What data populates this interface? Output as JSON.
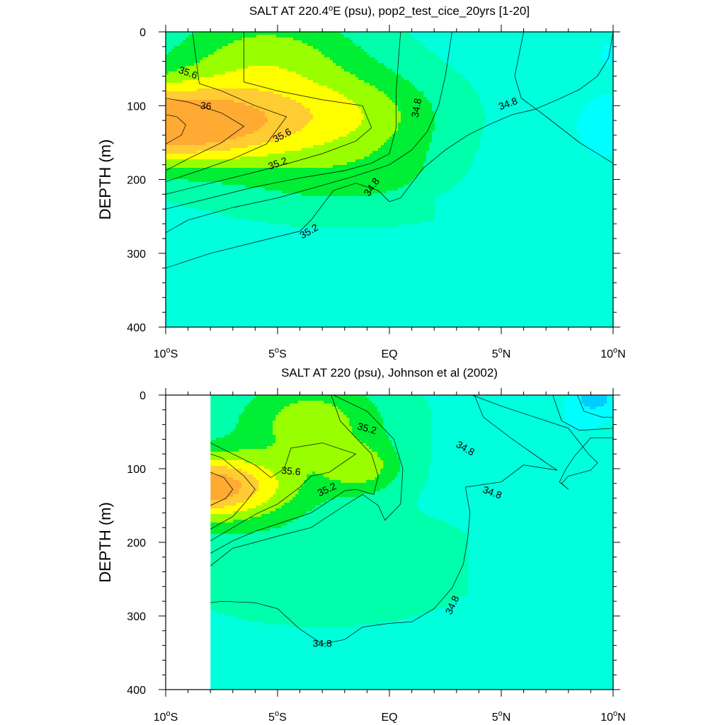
{
  "colors": {
    "sal_below_34_7": "#00CCFF",
    "sal_34_7_34_8": "#00FFFF",
    "sal_34_8_35_0": "#00FFDD",
    "sal_35_0_35_2": "#00FFAA",
    "sal_35_2_35_4": "#00EE33",
    "sal_35_4_35_6": "#99FF00",
    "sal_35_6_35_8": "#FFFF00",
    "sal_35_8_36_0": "#FFCC33",
    "sal_above_36_0": "#FFAA33"
  },
  "chart_data": [
    {
      "type": "contour",
      "title": "SALT AT 220.4°E (psu), pop2_test_cice_20yrs [1-20]",
      "title_parts": {
        "pre": "SALT AT 220.4",
        "deg": "o",
        "post": "E (psu), pop2_test_cice_20yrs [1-20]"
      },
      "ylabel": "DEPTH (m)",
      "xlabel": "",
      "xlim": [
        -10,
        10
      ],
      "ylim": [
        400,
        0
      ],
      "x_ticks": [
        {
          "value": -10,
          "num": "10",
          "deg": "o",
          "hem": "S"
        },
        {
          "value": -5,
          "num": "5",
          "deg": "o",
          "hem": "S"
        },
        {
          "value": 0,
          "num": "EQ",
          "deg": "",
          "hem": ""
        },
        {
          "value": 5,
          "num": "5",
          "deg": "o",
          "hem": "N"
        },
        {
          "value": 10,
          "num": "10",
          "deg": "o",
          "hem": "N"
        }
      ],
      "y_ticks": [
        "0",
        "100",
        "200",
        "300",
        "400"
      ],
      "contour_labels": [
        "35.6",
        "36",
        "35.6",
        "35.2",
        "35.2",
        "34.8",
        "34.8",
        "34.8"
      ],
      "contours": [
        {
          "level": 35.0,
          "points": [
            [
              -10,
              320
            ],
            [
              -8,
              300
            ],
            [
              -6,
              285
            ],
            [
              -4,
              270
            ],
            [
              -3.5,
              255
            ],
            [
              -2.5,
              215
            ],
            [
              -1.5,
              205
            ],
            [
              -0.5,
              215
            ],
            [
              0,
              230
            ],
            [
              0.5,
              225
            ],
            [
              1.5,
              185
            ],
            [
              2.5,
              160
            ],
            [
              3.5,
              140
            ],
            [
              4.5,
              125
            ],
            [
              5.5,
              112
            ],
            [
              6.5,
              105
            ],
            [
              7.5,
              92
            ],
            [
              8.5,
              78
            ],
            [
              9.3,
              60
            ],
            [
              9.8,
              35
            ],
            [
              10,
              0
            ]
          ]
        },
        {
          "level": 35.2,
          "points": [
            [
              -10,
              272
            ],
            [
              -9,
              255
            ],
            [
              -7,
              238
            ],
            [
              -5,
              225
            ],
            [
              -3,
              208
            ],
            [
              -1.5,
              195
            ],
            [
              0,
              180
            ],
            [
              1,
              160
            ],
            [
              1.7,
              135
            ],
            [
              2.2,
              100
            ],
            [
              2.5,
              60
            ],
            [
              2.8,
              0
            ]
          ]
        },
        {
          "level": 35.4,
          "points": [
            [
              -10,
              240
            ],
            [
              -8,
              225
            ],
            [
              -6,
              210
            ],
            [
              -4,
              198
            ],
            [
              -2,
              188
            ],
            [
              -0.8,
              178
            ],
            [
              0,
              165
            ],
            [
              0.3,
              130
            ],
            [
              0.3,
              80
            ],
            [
              0.5,
              0
            ]
          ]
        },
        {
          "level": 35.6,
          "points": [
            [
              -10,
              220
            ],
            [
              -8,
              205
            ],
            [
              -6,
              190
            ],
            [
              -4.5,
              178
            ],
            [
              -3,
              165
            ],
            [
              -1.5,
              148
            ],
            [
              -0.8,
              130
            ],
            [
              -1.2,
              100
            ],
            [
              -3,
              92
            ],
            [
              -5,
              80
            ],
            [
              -6.5,
              68
            ],
            [
              -6.5,
              0
            ]
          ]
        },
        {
          "level": 35.8,
          "points": [
            [
              -10,
              203
            ],
            [
              -8.5,
              188
            ],
            [
              -7,
              172
            ],
            [
              -5.5,
              152
            ],
            [
              -4.6,
              115
            ],
            [
              -6,
              100
            ],
            [
              -7.5,
              80
            ],
            [
              -8.5,
              70
            ],
            [
              -8.8,
              0
            ]
          ]
        },
        {
          "level": 36.0,
          "points": [
            [
              -10,
              188
            ],
            [
              -9,
              172
            ],
            [
              -7.5,
              150
            ],
            [
              -6.5,
              128
            ],
            [
              -7.5,
              110
            ],
            [
              -9,
              95
            ],
            [
              -10,
              90
            ]
          ]
        },
        {
          "level": 36.2,
          "points": [
            [
              -10,
              152
            ],
            [
              -9.3,
              140
            ],
            [
              -9.1,
              126
            ],
            [
              -9.5,
              115
            ],
            [
              -10,
              112
            ]
          ]
        },
        {
          "level": 34.8,
          "points": [
            [
              6.0,
              0
            ],
            [
              5.8,
              30
            ],
            [
              5.6,
              60
            ],
            [
              5.9,
              90
            ],
            [
              6.8,
              110
            ],
            [
              8.5,
              150
            ],
            [
              10,
              178
            ]
          ]
        }
      ]
    },
    {
      "type": "contour",
      "title": "SALT AT 220 (psu), Johnson et al (2002)",
      "title_parts": {
        "pre": "SALT AT 220 (psu), Johnson et al (2002)",
        "deg": "",
        "post": ""
      },
      "ylabel": "DEPTH (m)",
      "xlabel": "",
      "xlim": [
        -10,
        10
      ],
      "ylim": [
        400,
        0
      ],
      "data_xmin": -8,
      "x_ticks": [
        {
          "value": -10,
          "num": "10",
          "deg": "o",
          "hem": "S"
        },
        {
          "value": -5,
          "num": "5",
          "deg": "o",
          "hem": "S"
        },
        {
          "value": 0,
          "num": "EQ",
          "deg": "",
          "hem": ""
        },
        {
          "value": 5,
          "num": "5",
          "deg": "o",
          "hem": "N"
        },
        {
          "value": 10,
          "num": "10",
          "deg": "o",
          "hem": "N"
        }
      ],
      "y_ticks": [
        "0",
        "100",
        "200",
        "300",
        "400"
      ],
      "contour_labels": [
        "35.2",
        "35.6",
        "35.2",
        "34.8",
        "34.8",
        "34.8",
        "34.8"
      ],
      "contours": [
        {
          "level": 35.0,
          "points": [
            [
              -8,
              282
            ],
            [
              -7.5,
              280
            ],
            [
              -6,
              282
            ],
            [
              -5,
              290
            ],
            [
              -4,
              318
            ],
            [
              -3,
              338
            ],
            [
              -2,
              332
            ],
            [
              -1.2,
              315
            ],
            [
              0,
              310
            ],
            [
              1,
              308
            ],
            [
              2,
              290
            ],
            [
              2.8,
              262
            ],
            [
              3.3,
              230
            ],
            [
              3.5,
              195
            ],
            [
              3.6,
              160
            ],
            [
              3.4,
              125
            ],
            [
              5,
              118
            ],
            [
              6,
              95
            ],
            [
              7.5,
              102
            ],
            [
              7,
              92
            ],
            [
              5.5,
              60
            ],
            [
              4.2,
              30
            ],
            [
              3.8,
              0
            ]
          ]
        },
        {
          "level": 35.2,
          "points": [
            [
              -8,
              232
            ],
            [
              -7,
              208
            ],
            [
              -6,
              200
            ],
            [
              -4.8,
              190
            ],
            [
              -3.5,
              180
            ],
            [
              -2,
              150
            ],
            [
              -1.2,
              135
            ],
            [
              -0.5,
              150
            ],
            [
              -0.2,
              170
            ],
            [
              0.5,
              148
            ],
            [
              0.6,
              100
            ],
            [
              0.2,
              60
            ],
            [
              -1,
              22
            ],
            [
              -2.5,
              0
            ]
          ]
        },
        {
          "level": 35.4,
          "points": [
            [
              -8,
              215
            ],
            [
              -7,
              198
            ],
            [
              -6,
              185
            ],
            [
              -5,
              175
            ],
            [
              -3.5,
              160
            ],
            [
              -2,
              130
            ],
            [
              -1.5,
              128
            ],
            [
              -0.7,
              135
            ],
            [
              -0.5,
              110
            ],
            [
              -0.8,
              80
            ],
            [
              -1.5,
              58
            ],
            [
              -2.2,
              35
            ],
            [
              -2.6,
              0
            ]
          ]
        },
        {
          "level": 35.6,
          "points": [
            [
              -8,
              198
            ],
            [
              -7,
              180
            ],
            [
              -6,
              162
            ],
            [
              -5,
              148
            ],
            [
              -4,
              125
            ],
            [
              -3.5,
              110
            ],
            [
              -2.7,
              105
            ],
            [
              -1.5,
              80
            ],
            [
              -3,
              65
            ],
            [
              -4.4,
              72
            ],
            [
              -4.7,
              100
            ],
            [
              -5.3,
              112
            ],
            [
              -6,
              95
            ],
            [
              -7,
              80
            ],
            [
              -7.8,
              68
            ],
            [
              -8,
              65
            ]
          ]
        },
        {
          "level": 35.8,
          "points": [
            [
              -8,
              182
            ],
            [
              -7,
              165
            ],
            [
              -6.5,
              148
            ],
            [
              -6,
              128
            ],
            [
              -6.5,
              110
            ],
            [
              -7.5,
              85
            ],
            [
              -8,
              80
            ]
          ]
        },
        {
          "level": 36.0,
          "points": [
            [
              -8,
              150
            ],
            [
              -7.3,
              140
            ],
            [
              -7,
              128
            ],
            [
              -7.4,
              112
            ],
            [
              -8,
              105
            ]
          ]
        },
        {
          "level": 34.7,
          "points": [
            [
              3.7,
              0
            ],
            [
              5,
              15
            ],
            [
              6.5,
              30
            ],
            [
              8,
              45
            ],
            [
              8.9,
              80
            ],
            [
              9.3,
              92
            ],
            [
              9,
              102
            ],
            [
              8,
              110
            ],
            [
              7.7,
              120
            ],
            [
              8,
              128
            ],
            [
              7.6,
              118
            ],
            [
              7.9,
              100
            ],
            [
              8.3,
              82
            ],
            [
              8.8,
              65
            ],
            [
              9,
              58
            ],
            [
              10,
              58
            ]
          ]
        },
        {
          "level": 34.6,
          "points": [
            [
              7.3,
              0
            ],
            [
              7.7,
              35
            ],
            [
              8.5,
              48
            ],
            [
              10,
              45
            ]
          ]
        },
        {
          "level": 34.5,
          "points": [
            [
              8.4,
              0
            ],
            [
              8.7,
              22
            ],
            [
              9.5,
              30
            ],
            [
              10,
              30
            ]
          ]
        }
      ]
    }
  ]
}
